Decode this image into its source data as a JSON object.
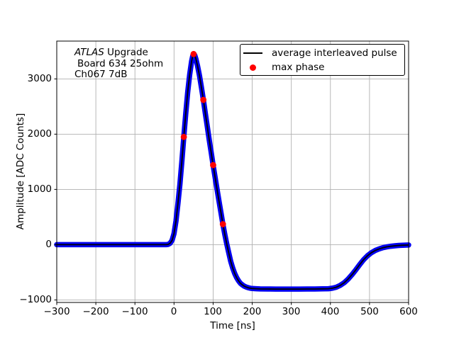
{
  "chart_data": {
    "type": "line",
    "title": "",
    "xlabel": "Time [ns]",
    "ylabel": "Amplitude [ADC Counts]",
    "xlim": [
      -300,
      600
    ],
    "ylim": [
      -1016,
      3663
    ],
    "grid": true,
    "xticks": [
      -300,
      -200,
      -100,
      0,
      100,
      200,
      300,
      400,
      500,
      600
    ],
    "yticks": [
      3000,
      2000,
      1000,
      0,
      -1000
    ],
    "xtick_labels": [
      "−300",
      "−200",
      "−100",
      "0",
      "100",
      "200",
      "300",
      "400",
      "500",
      "600"
    ],
    "ytick_labels": [
      "3000",
      "2000",
      "1000",
      "0",
      "−1000"
    ],
    "annotation": {
      "line1_italic": "ATLAS",
      "line1_rest": " Upgrade",
      "line2": "Board 634 25ohm",
      "line3": "Ch067 7dB"
    },
    "legend": {
      "position": "upper right",
      "items": [
        {
          "sample": "line",
          "color": "#000000",
          "label": "average interleaved pulse"
        },
        {
          "sample": "dot",
          "color": "#ff0000",
          "label": "max phase"
        }
      ]
    },
    "colors": {
      "interleaved_band": "#0202f0",
      "average_line": "#000000",
      "max_phase": "#ff0000",
      "grid": "#b0b0b0"
    },
    "series": [
      {
        "name": "average interleaved pulse",
        "type": "line",
        "color": "#000000",
        "band_color": "#0202f0",
        "points": [
          [
            -300,
            0
          ],
          [
            -250,
            0
          ],
          [
            -200,
            0
          ],
          [
            -150,
            0
          ],
          [
            -100,
            0
          ],
          [
            -50,
            0
          ],
          [
            -30,
            0
          ],
          [
            -20,
            0
          ],
          [
            -15,
            5
          ],
          [
            -10,
            25
          ],
          [
            -5,
            80
          ],
          [
            0,
            200
          ],
          [
            5,
            430
          ],
          [
            10,
            740
          ],
          [
            15,
            1090
          ],
          [
            20,
            1510
          ],
          [
            25,
            1950
          ],
          [
            30,
            2380
          ],
          [
            35,
            2760
          ],
          [
            40,
            3080
          ],
          [
            45,
            3320
          ],
          [
            48,
            3420
          ],
          [
            50,
            3450
          ],
          [
            53,
            3430
          ],
          [
            56,
            3360
          ],
          [
            60,
            3240
          ],
          [
            65,
            3060
          ],
          [
            70,
            2850
          ],
          [
            75,
            2620
          ],
          [
            80,
            2380
          ],
          [
            85,
            2140
          ],
          [
            90,
            1900
          ],
          [
            95,
            1670
          ],
          [
            100,
            1440
          ],
          [
            105,
            1220
          ],
          [
            110,
            1000
          ],
          [
            115,
            790
          ],
          [
            120,
            580
          ],
          [
            125,
            370
          ],
          [
            130,
            180
          ],
          [
            135,
            10
          ],
          [
            140,
            -150
          ],
          [
            145,
            -300
          ],
          [
            150,
            -420
          ],
          [
            155,
            -520
          ],
          [
            160,
            -595
          ],
          [
            165,
            -655
          ],
          [
            170,
            -700
          ],
          [
            175,
            -730
          ],
          [
            180,
            -752
          ],
          [
            185,
            -768
          ],
          [
            190,
            -780
          ],
          [
            195,
            -788
          ],
          [
            200,
            -793
          ],
          [
            210,
            -798
          ],
          [
            220,
            -801
          ],
          [
            240,
            -803
          ],
          [
            260,
            -804
          ],
          [
            280,
            -804
          ],
          [
            300,
            -804
          ],
          [
            320,
            -804
          ],
          [
            340,
            -803
          ],
          [
            360,
            -802
          ],
          [
            380,
            -800
          ],
          [
            395,
            -797
          ],
          [
            405,
            -789
          ],
          [
            415,
            -770
          ],
          [
            425,
            -737
          ],
          [
            435,
            -690
          ],
          [
            445,
            -625
          ],
          [
            455,
            -545
          ],
          [
            465,
            -455
          ],
          [
            475,
            -360
          ],
          [
            485,
            -272
          ],
          [
            495,
            -200
          ],
          [
            505,
            -145
          ],
          [
            515,
            -104
          ],
          [
            525,
            -75
          ],
          [
            535,
            -54
          ],
          [
            545,
            -39
          ],
          [
            555,
            -28
          ],
          [
            565,
            -20
          ],
          [
            575,
            -14
          ],
          [
            585,
            -10
          ],
          [
            600,
            -6
          ]
        ]
      },
      {
        "name": "max phase",
        "type": "scatter",
        "color": "#ff0000",
        "points": [
          [
            25,
            1950
          ],
          [
            50,
            3450
          ],
          [
            75,
            2620
          ],
          [
            100,
            1440
          ],
          [
            125,
            370
          ]
        ]
      }
    ]
  }
}
